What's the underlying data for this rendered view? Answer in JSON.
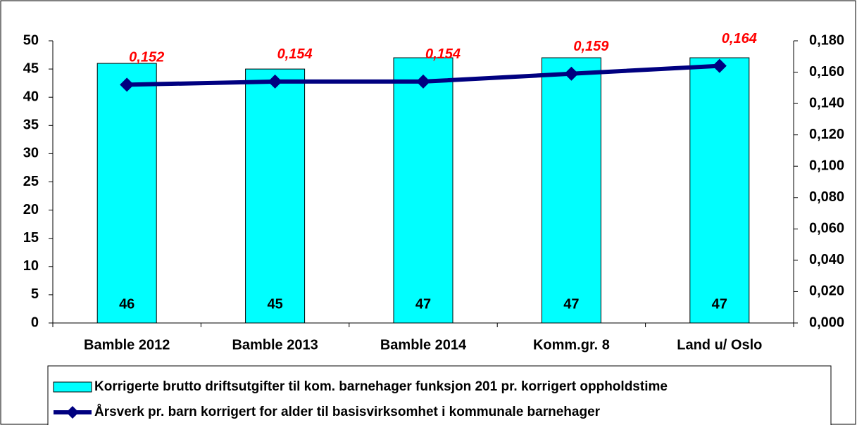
{
  "chart_data": {
    "type": "bar",
    "categories": [
      "Bamble 2012",
      "Bamble 2013",
      "Bamble 2014",
      "Komm.gr. 8",
      "Land u/ Oslo"
    ],
    "series": [
      {
        "name": "Korrigerte brutto driftsutgifter til kom. barnehager funksjon 201 pr. korrigert oppholdstime",
        "type": "bar",
        "color": "#00ffff",
        "values": [
          46,
          45,
          47,
          47,
          47
        ]
      },
      {
        "name": "Årsverk pr. barn korrigert for alder til basisvirksomhet i kommunale barnehager",
        "type": "line",
        "axis": "y2",
        "color": "#000080",
        "values": [
          0.152,
          0.154,
          0.154,
          0.159,
          0.164
        ],
        "value_labels": [
          "0,152",
          "0,154",
          "0,154",
          "0,159",
          "0,164"
        ]
      }
    ],
    "ylim": [
      0,
      50
    ],
    "yticks": [
      0,
      5,
      10,
      15,
      20,
      25,
      30,
      35,
      40,
      45,
      50
    ],
    "y2lim": [
      0,
      0.18
    ],
    "y2ticks": [
      {
        "value": 0,
        "label": "0,000"
      },
      {
        "value": 0.02,
        "label": "0,020"
      },
      {
        "value": 0.04,
        "label": "0,040"
      },
      {
        "value": 0.06,
        "label": "0,060"
      },
      {
        "value": 0.08,
        "label": "0,080"
      },
      {
        "value": 0.1,
        "label": "0,100"
      },
      {
        "value": 0.12,
        "label": "0,120"
      },
      {
        "value": 0.14,
        "label": "0,140"
      },
      {
        "value": 0.16,
        "label": "0,160"
      },
      {
        "value": 0.18,
        "label": "0,180"
      }
    ],
    "grid": false,
    "legend": "bottom",
    "value_label_color": "#ff0000"
  }
}
